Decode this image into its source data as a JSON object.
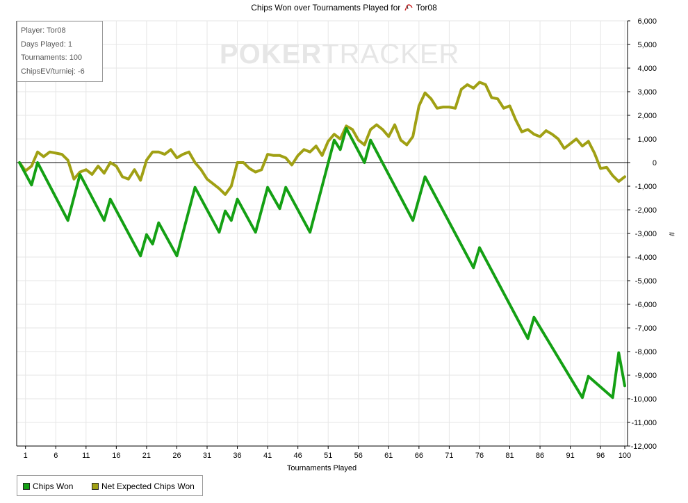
{
  "title_prefix": "Chips Won over Tournaments Played for",
  "player_name": "Tor08",
  "info": {
    "player": "Player: Tor08",
    "days": "Days Played: 1",
    "tournaments": "Tournaments: 100",
    "chipsev": "ChipsEV/turniej: -6"
  },
  "watermark": {
    "left": "POKER",
    "right": "TRACKER"
  },
  "legend": {
    "chips_won": "Chips Won",
    "net_expected": "Net Expected Chips Won"
  },
  "colors": {
    "chips_won": "#14a014",
    "net_expected": "#a0a014",
    "grid": "#e6e6e6",
    "zero_line": "#000000"
  },
  "chart_data": {
    "type": "line",
    "title": "Chips Won over Tournaments Played for Tor08",
    "xlabel": "Tournaments Played",
    "ylabel": "#",
    "xlim": [
      0,
      100
    ],
    "ylim": [
      -12000,
      6000
    ],
    "x_ticks": [
      1,
      6,
      11,
      16,
      21,
      26,
      31,
      36,
      41,
      46,
      51,
      56,
      61,
      66,
      71,
      76,
      81,
      86,
      91,
      96,
      100
    ],
    "y_ticks": [
      6000,
      5000,
      4000,
      3000,
      2000,
      1000,
      0,
      -1000,
      -2000,
      -3000,
      -4000,
      -5000,
      -6000,
      -7000,
      -8000,
      -9000,
      -10000,
      -11000,
      -12000
    ],
    "y_tick_labels": [
      "6,000",
      "5,000",
      "4,000",
      "3,000",
      "2,000",
      "1,000",
      "0",
      "-1,000",
      "-2,000",
      "-3,000",
      "-4,000",
      "-5,000",
      "-6,000",
      "-7,000",
      "-8,000",
      "-9,000",
      "-10,000",
      "-11,000",
      "-12,000"
    ],
    "grid": true,
    "legend_position": "bottom-left",
    "series": [
      {
        "name": "Chips Won",
        "x": [
          0,
          2,
          3,
          8,
          10,
          14,
          15,
          20,
          21,
          22,
          23,
          26,
          29,
          33,
          34,
          35,
          36,
          39,
          41,
          43,
          44,
          48,
          52,
          53,
          54,
          57,
          58,
          65,
          67,
          75,
          76,
          84,
          85,
          93,
          94,
          98,
          99,
          100
        ],
        "y": [
          0,
          -950,
          0,
          -2450,
          -500,
          -2450,
          -1550,
          -3950,
          -3050,
          -3450,
          -2550,
          -3950,
          -1050,
          -2950,
          -2050,
          -2450,
          -1550,
          -2950,
          -1050,
          -1950,
          -1050,
          -2950,
          950,
          550,
          1450,
          0,
          950,
          -2450,
          -600,
          -4450,
          -3600,
          -7450,
          -6550,
          -9950,
          -9050,
          -9950,
          -8050,
          -9450
        ]
      },
      {
        "name": "Net Expected Chips Won",
        "x": [
          0,
          1,
          2,
          3,
          4,
          5,
          6,
          7,
          8,
          9,
          10,
          11,
          12,
          13,
          14,
          15,
          16,
          17,
          18,
          19,
          20,
          21,
          22,
          23,
          24,
          25,
          26,
          27,
          28,
          29,
          30,
          31,
          32,
          33,
          34,
          35,
          36,
          37,
          38,
          39,
          40,
          41,
          42,
          43,
          44,
          45,
          46,
          47,
          48,
          49,
          50,
          51,
          52,
          53,
          54,
          55,
          56,
          57,
          58,
          59,
          60,
          61,
          62,
          63,
          64,
          65,
          66,
          67,
          68,
          69,
          70,
          71,
          72,
          73,
          74,
          75,
          76,
          77,
          78,
          79,
          80,
          81,
          82,
          83,
          84,
          85,
          86,
          87,
          88,
          89,
          90,
          91,
          92,
          93,
          94,
          95,
          96,
          97,
          98,
          99,
          100
        ],
        "y": [
          0,
          -350,
          -150,
          450,
          250,
          450,
          400,
          350,
          100,
          -700,
          -400,
          -300,
          -500,
          -150,
          -450,
          0,
          -150,
          -600,
          -700,
          -300,
          -750,
          100,
          450,
          450,
          350,
          550,
          200,
          350,
          450,
          0,
          -300,
          -700,
          -900,
          -1100,
          -1350,
          -1000,
          0,
          0,
          -250,
          -400,
          -300,
          350,
          300,
          300,
          200,
          -100,
          300,
          550,
          450,
          700,
          300,
          900,
          1200,
          1000,
          1550,
          1400,
          950,
          750,
          1400,
          1600,
          1400,
          1100,
          1600,
          950,
          750,
          1100,
          2400,
          2950,
          2700,
          2300,
          2350,
          2350,
          2300,
          3100,
          3300,
          3150,
          3400,
          3300,
          2750,
          2700,
          2300,
          2400,
          1800,
          1300,
          1400,
          1200,
          1100,
          1350,
          1200,
          1000,
          600,
          800,
          1000,
          700,
          900,
          400,
          -250,
          -200,
          -550,
          -800,
          -600
        ]
      }
    ]
  }
}
